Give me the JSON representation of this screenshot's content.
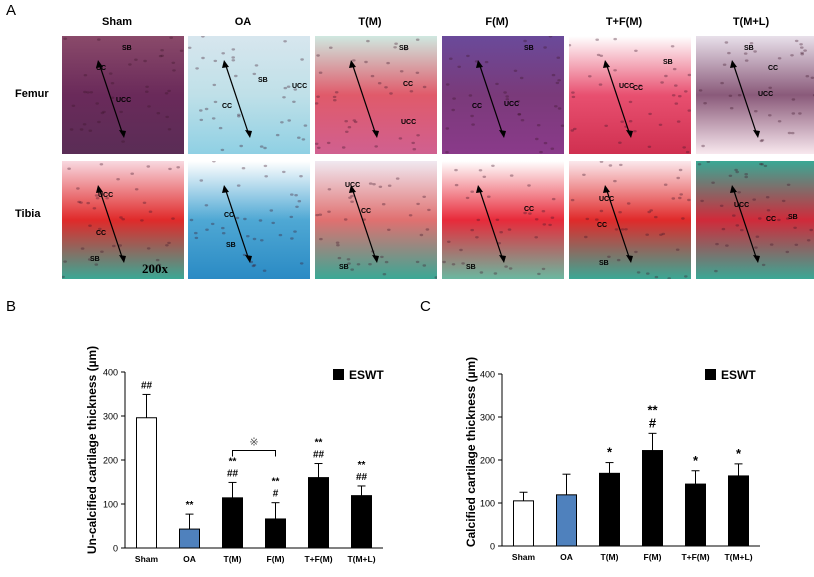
{
  "panels": {
    "a": {
      "letter": "A",
      "columns": [
        "Sham",
        "OA",
        "T(M)",
        "F(M)",
        "T+F(M)",
        "T(M+L)"
      ],
      "rows": [
        "Femur",
        "Tibia"
      ],
      "magnification": "200x",
      "tissue_labels": {
        "sb": "SB",
        "cc": "CC",
        "ucc": "UCC"
      },
      "colors": {
        "red_stain": "#e02a2a",
        "blue_stain": "#4fa8d4",
        "green_stain": "#3aa895",
        "purple_stain": "#6a3a6a"
      }
    },
    "b": {
      "letter": "B"
    },
    "c": {
      "letter": "C"
    }
  },
  "chart_data": [
    {
      "type": "bar",
      "id": "B",
      "ylabel": "Un-calcified cartilage thickness (µm)",
      "categories": [
        "Sham",
        "OA",
        "T(M)",
        "F(M)",
        "T+F(M)",
        "T(M+L)"
      ],
      "values": [
        296,
        43,
        114,
        66,
        160,
        119
      ],
      "errors": [
        53,
        34,
        35,
        37,
        32,
        22
      ],
      "bar_colors": [
        "#ffffff",
        "#4f81bd",
        "#000000",
        "#000000",
        "#000000",
        "#000000"
      ],
      "significance": [
        [
          "##"
        ],
        [
          "**"
        ],
        [
          "**",
          "##"
        ],
        [
          "**",
          "#"
        ],
        [
          "**",
          "##"
        ],
        [
          "**",
          "##"
        ]
      ],
      "comparison": {
        "between": [
          2,
          3
        ],
        "symbol": "※"
      },
      "ylim": [
        0,
        400
      ],
      "yticks": [
        0,
        100,
        200,
        300,
        400
      ],
      "legend": {
        "label": "ESWT",
        "color": "#000000",
        "position": "top-right"
      }
    },
    {
      "type": "bar",
      "id": "C",
      "ylabel": "Calcified cartilage thickness (µm)",
      "categories": [
        "Sham",
        "OA",
        "T(M)",
        "F(M)",
        "T+F(M)",
        "T(M+L)"
      ],
      "values": [
        105,
        119,
        169,
        222,
        144,
        163
      ],
      "errors": [
        20,
        48,
        25,
        40,
        31,
        28
      ],
      "bar_colors": [
        "#ffffff",
        "#4f81bd",
        "#000000",
        "#000000",
        "#000000",
        "#000000"
      ],
      "significance": [
        [],
        [],
        [
          "*"
        ],
        [
          "**",
          "#"
        ],
        [
          "*"
        ],
        [
          "*"
        ]
      ],
      "ylim": [
        0,
        400
      ],
      "yticks": [
        0,
        100,
        200,
        300,
        400
      ],
      "legend": {
        "label": "ESWT",
        "color": "#000000",
        "position": "top-right"
      }
    }
  ]
}
